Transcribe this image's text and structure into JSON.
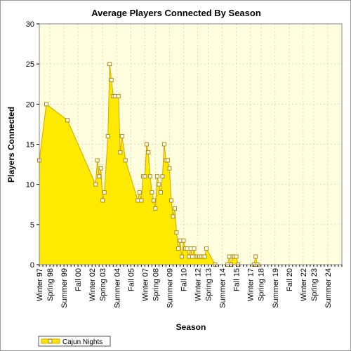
{
  "chart_data": {
    "type": "area",
    "title": "Average Players Connected By Season",
    "xlabel": "Season",
    "ylabel": "Players Connected",
    "ylim": [
      0,
      30
    ],
    "yticks": [
      0,
      5,
      10,
      15,
      20,
      25,
      30
    ],
    "grid": true,
    "legend_position": "bottom-left",
    "colors": {
      "plot_background": "#ffffe0",
      "area_fill": "#ffea00",
      "area_line": "#d4a500",
      "marker_fill": "#ffffff",
      "marker_stroke": "#b38b00",
      "grid": "#d9d9c0"
    },
    "x_tick_labels": [
      {
        "label": "Winter 97",
        "index": 0
      },
      {
        "label": "Spring 98",
        "index": 3
      },
      {
        "label": "Summer 99",
        "index": 7
      },
      {
        "label": "Fall 00",
        "index": 11
      },
      {
        "label": "Winter 02",
        "index": 15
      },
      {
        "label": "Spring 03",
        "index": 18
      },
      {
        "label": "Summer 04",
        "index": 22
      },
      {
        "label": "Fall 05",
        "index": 26
      },
      {
        "label": "Winter 07",
        "index": 30
      },
      {
        "label": "Spring 08",
        "index": 33
      },
      {
        "label": "Summer 09",
        "index": 37
      },
      {
        "label": "Fall 10",
        "index": 41
      },
      {
        "label": "Winter 12",
        "index": 45
      },
      {
        "label": "Spring 13",
        "index": 48
      },
      {
        "label": "Summer 14",
        "index": 52
      },
      {
        "label": "Fall 15",
        "index": 56
      },
      {
        "label": "Winter 17",
        "index": 60
      },
      {
        "label": "Spring 18",
        "index": 63
      },
      {
        "label": "Summer 19",
        "index": 67
      },
      {
        "label": "Fall 20",
        "index": 71
      },
      {
        "label": "Winter 22",
        "index": 75
      },
      {
        "label": "Spring 23",
        "index": 78
      },
      {
        "label": "Summer 24",
        "index": 82
      }
    ],
    "series": [
      {
        "name": "Cajun Nights",
        "points": [
          {
            "index": 0,
            "value": 13
          },
          {
            "index": 2,
            "value": 20
          },
          {
            "index": 8,
            "value": 18
          },
          {
            "index": 16,
            "value": 10
          },
          {
            "index": 16.5,
            "value": 13
          },
          {
            "index": 17,
            "value": 11
          },
          {
            "index": 17.5,
            "value": 12
          },
          {
            "index": 18,
            "value": 8
          },
          {
            "index": 18.5,
            "value": 9
          },
          {
            "index": 19.5,
            "value": 16
          },
          {
            "index": 20,
            "value": 25
          },
          {
            "index": 20.5,
            "value": 23
          },
          {
            "index": 21,
            "value": 21
          },
          {
            "index": 21.5,
            "value": 21
          },
          {
            "index": 22.5,
            "value": 21
          },
          {
            "index": 23,
            "value": 14
          },
          {
            "index": 23.5,
            "value": 16
          },
          {
            "index": 24.5,
            "value": 13
          },
          {
            "index": 28,
            "value": 8
          },
          {
            "index": 28.5,
            "value": 9
          },
          {
            "index": 29,
            "value": 8
          },
          {
            "index": 29.5,
            "value": 11
          },
          {
            "index": 30,
            "value": 11
          },
          {
            "index": 30.5,
            "value": 15
          },
          {
            "index": 31,
            "value": 14
          },
          {
            "index": 31.5,
            "value": 11
          },
          {
            "index": 32,
            "value": 9
          },
          {
            "index": 32.5,
            "value": 8
          },
          {
            "index": 33,
            "value": 7
          },
          {
            "index": 33.5,
            "value": 11
          },
          {
            "index": 34,
            "value": 10
          },
          {
            "index": 34.5,
            "value": 9
          },
          {
            "index": 35,
            "value": 11
          },
          {
            "index": 35.5,
            "value": 15
          },
          {
            "index": 36,
            "value": 13
          },
          {
            "index": 36.5,
            "value": 13
          },
          {
            "index": 37,
            "value": 12
          },
          {
            "index": 37.5,
            "value": 8
          },
          {
            "index": 38,
            "value": 6
          },
          {
            "index": 38.5,
            "value": 7
          },
          {
            "index": 39,
            "value": 4
          },
          {
            "index": 39.5,
            "value": 2
          },
          {
            "index": 40,
            "value": 3
          },
          {
            "index": 40.5,
            "value": 1
          },
          {
            "index": 41,
            "value": 3
          },
          {
            "index": 41.5,
            "value": 2
          },
          {
            "index": 42,
            "value": 2
          },
          {
            "index": 42.5,
            "value": 1
          },
          {
            "index": 43,
            "value": 2
          },
          {
            "index": 43.5,
            "value": 1
          },
          {
            "index": 44,
            "value": 2
          },
          {
            "index": 44.5,
            "value": 1
          },
          {
            "index": 45,
            "value": 1
          },
          {
            "index": 45.5,
            "value": 1
          },
          {
            "index": 46,
            "value": 1
          },
          {
            "index": 46.5,
            "value": 1
          },
          {
            "index": 47,
            "value": 1
          },
          {
            "index": 47.5,
            "value": 2
          },
          {
            "index": 50,
            "value": 0
          },
          {
            "index": 53.5,
            "value": 0
          },
          {
            "index": 54,
            "value": 1
          },
          {
            "index": 54.5,
            "value": 0
          },
          {
            "index": 55,
            "value": 1
          },
          {
            "index": 55.5,
            "value": 1
          },
          {
            "index": 56,
            "value": 1
          },
          {
            "index": 56.5,
            "value": 0
          },
          {
            "index": 61,
            "value": 0
          },
          {
            "index": 61.5,
            "value": 1
          },
          {
            "index": 62,
            "value": 0
          }
        ]
      }
    ]
  }
}
